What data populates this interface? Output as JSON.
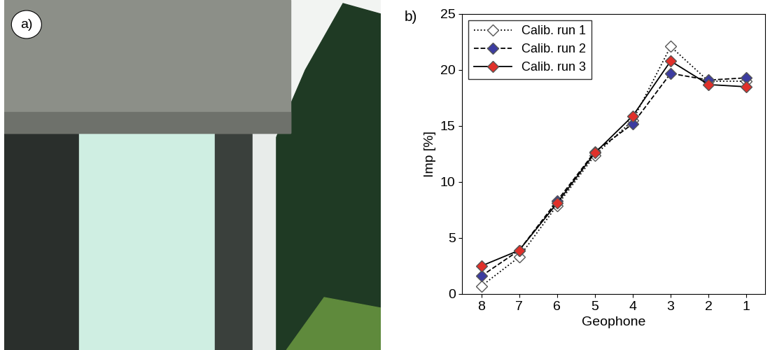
{
  "photo": {
    "label": "a)"
  },
  "chart_data": {
    "type": "line",
    "label": "b)",
    "x_label": "Geophone",
    "y_label": "Imp [%]",
    "categories": [
      "8",
      "7",
      "6",
      "5",
      "4",
      "3",
      "2",
      "1"
    ],
    "series": [
      {
        "name": "Calib. run 1",
        "color": "#ffffff",
        "marker": "diamond",
        "line_style": "dotted",
        "values": [
          0.7,
          3.3,
          7.9,
          12.4,
          15.5,
          22.1,
          19.0,
          19.0
        ]
      },
      {
        "name": "Calib. run 2",
        "color": "#3c3ca0",
        "marker": "diamond",
        "line_style": "dashed",
        "values": [
          1.6,
          3.9,
          8.3,
          12.7,
          15.2,
          19.7,
          19.1,
          19.3
        ]
      },
      {
        "name": "Calib. run 3",
        "color": "#e0302a",
        "marker": "diamond",
        "line_style": "solid",
        "values": [
          2.5,
          3.9,
          8.1,
          12.6,
          15.9,
          20.8,
          18.7,
          18.5
        ]
      }
    ],
    "ylim": [
      0,
      25
    ],
    "yticks": [
      0,
      5,
      10,
      15,
      20,
      25
    ],
    "legend": "upper left",
    "grid": false
  }
}
